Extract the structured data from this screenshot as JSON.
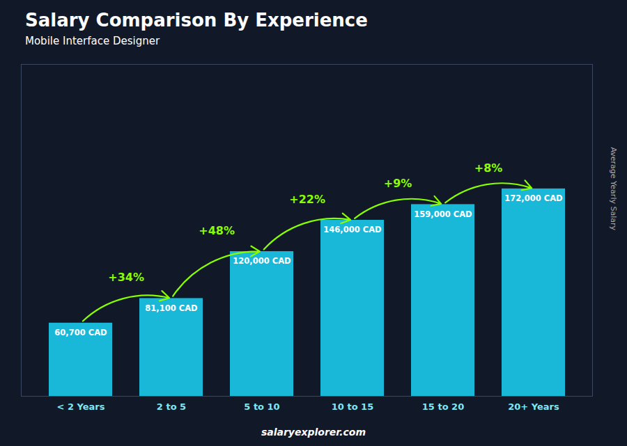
{
  "chart_data": {
    "type": "bar",
    "title": "Salary Comparison By Experience",
    "subtitle": "Mobile Interface Designer",
    "ylabel": "Average Yearly Salary",
    "categories": [
      "< 2 Years",
      "2 to 5",
      "5 to 10",
      "10 to 15",
      "15 to 20",
      "20+ Years"
    ],
    "values": [
      60700,
      81100,
      120000,
      146000,
      159000,
      172000
    ],
    "value_labels": [
      "60,700 CAD",
      "81,100 CAD",
      "120,000 CAD",
      "146,000 CAD",
      "159,000 CAD",
      "172,000 CAD"
    ],
    "data_labels": true,
    "annotations": [
      "+34%",
      "+48%",
      "+22%",
      "+9%",
      "+8%"
    ],
    "caption": "salaryexplorer.com",
    "color": "#1ab8d8",
    "ylim": [
      0,
      275200
    ],
    "tick_labels": "x",
    "grid": false
  }
}
